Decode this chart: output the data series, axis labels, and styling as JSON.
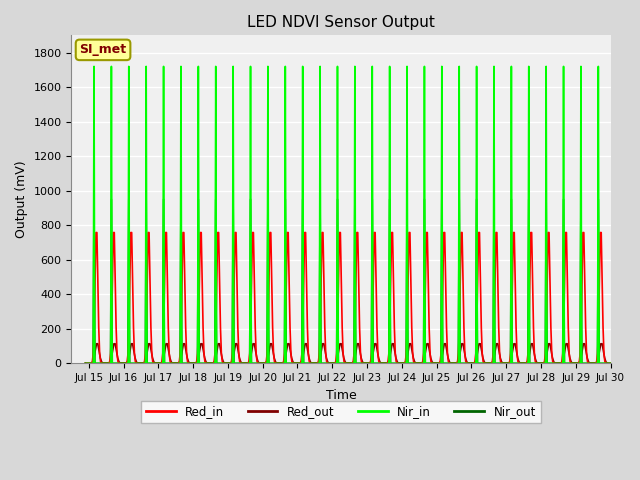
{
  "title": "LED NDVI Sensor Output",
  "xlabel": "Time",
  "ylabel": "Output (mV)",
  "xlim_start": 14.5,
  "xlim_end": 30.0,
  "ylim": [
    0,
    1900
  ],
  "yticks": [
    0,
    200,
    400,
    600,
    800,
    1000,
    1200,
    1400,
    1600,
    1800
  ],
  "xtick_labels": [
    "Jul 15",
    "Jul 16",
    "Jul 17",
    "Jul 18",
    "Jul 19",
    "Jul 20",
    "Jul 21",
    "Jul 22",
    "Jul 23",
    "Jul 24",
    "Jul 25",
    "Jul 26",
    "Jul 27",
    "Jul 28",
    "Jul 29",
    "Jul 30"
  ],
  "xtick_positions": [
    15,
    16,
    17,
    18,
    19,
    20,
    21,
    22,
    23,
    24,
    25,
    26,
    27,
    28,
    29,
    30
  ],
  "n_cycles": 30,
  "red_in_color": "#ff0000",
  "red_out_color": "#800000",
  "nir_in_color": "#00ff00",
  "nir_out_color": "#006400",
  "nir_in_peak": 1720,
  "nir_out_peak": 950,
  "red_in_peak": 800,
  "red_out_peak": 120,
  "background_color": "#d8d8d8",
  "plot_bg_color": "#f0f0f0",
  "grid_color": "#ffffff",
  "annotation_text": "SI_met",
  "annotation_color": "#800000",
  "annotation_bg": "#ffff99",
  "annotation_border": "#999900"
}
